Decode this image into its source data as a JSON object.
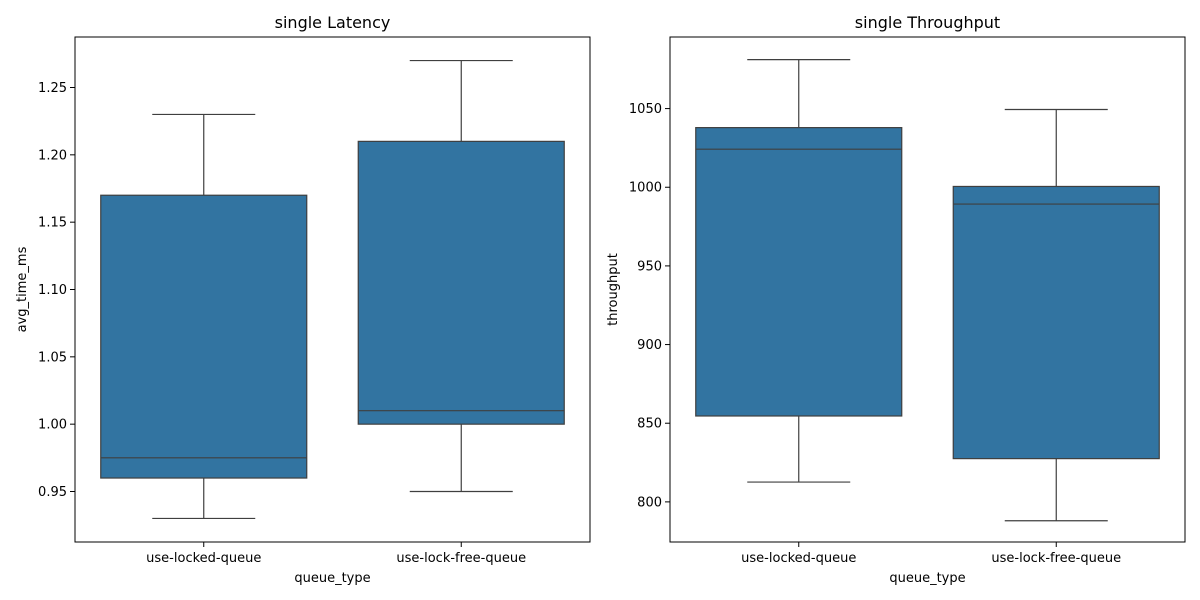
{
  "chart_data": [
    {
      "type": "box",
      "title": "single Latency",
      "xlabel": "queue_type",
      "ylabel": "avg_time_ms",
      "ylim": [
        0.9125,
        1.2875
      ],
      "yticks": [
        0.95,
        1.0,
        1.05,
        1.1,
        1.15,
        1.2,
        1.25
      ],
      "ytick_labels": [
        "0.95",
        "1.00",
        "1.05",
        "1.10",
        "1.15",
        "1.20",
        "1.25"
      ],
      "categories": [
        "use-locked-queue",
        "use-lock-free-queue"
      ],
      "boxes": [
        {
          "whisker_low": 0.93,
          "q1": 0.96,
          "median": 0.975,
          "q3": 1.17,
          "whisker_high": 1.23
        },
        {
          "whisker_low": 0.95,
          "q1": 1.0,
          "median": 1.01,
          "q3": 1.21,
          "whisker_high": 1.27
        }
      ],
      "grid": false,
      "color": "#3274a1"
    },
    {
      "type": "box",
      "title": "single Throughput",
      "xlabel": "queue_type",
      "ylabel": "throughput",
      "ylim": [
        774.5,
        1095.5
      ],
      "yticks": [
        800,
        850,
        900,
        950,
        1000,
        1050
      ],
      "ytick_labels": [
        "800",
        "850",
        "900",
        "950",
        "1000",
        "1050"
      ],
      "categories": [
        "use-locked-queue",
        "use-lock-free-queue"
      ],
      "boxes": [
        {
          "whisker_low": 812.6,
          "q1": 854.6,
          "median": 1024.2,
          "q3": 1037.9,
          "whisker_high": 1081.1
        },
        {
          "whisker_low": 788.0,
          "q1": 827.5,
          "median": 989.3,
          "q3": 1000.5,
          "whisker_high": 1049.4
        }
      ],
      "grid": false,
      "color": "#3274a1"
    }
  ]
}
